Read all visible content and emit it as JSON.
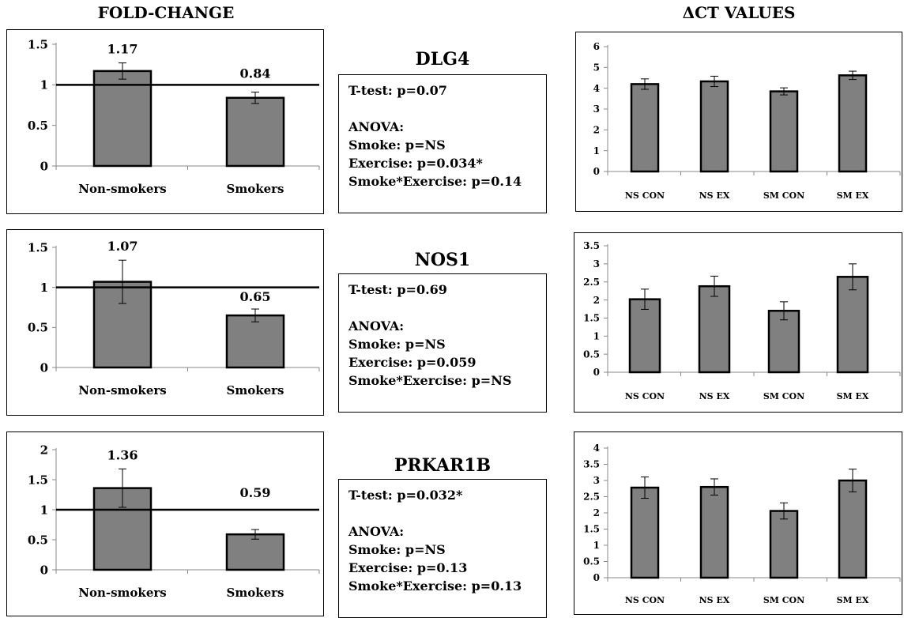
{
  "headers": {
    "left": "FOLD-CHANGE",
    "right": "ΔCT VALUES"
  },
  "rows": [
    {
      "gene": "DLG4",
      "stats": {
        "ttest": "T-test: p=0.07",
        "anova": "ANOVA:",
        "smoke": "Smoke: p=NS",
        "exercise": "Exercise: p=0.034*",
        "interaction": "Smoke*Exercise: p=0.14"
      }
    },
    {
      "gene": "NOS1",
      "stats": {
        "ttest": "T-test: p=0.69",
        "anova": "ANOVA:",
        "smoke": "Smoke: p=NS",
        "exercise": "Exercise: p=0.059",
        "interaction": "Smoke*Exercise: p=NS"
      }
    },
    {
      "gene": "PRKAR1B",
      "stats": {
        "ttest": "T-test: p=0.032*",
        "anova": "ANOVA:",
        "smoke": "Smoke: p=NS",
        "exercise": "Exercise: p=0.13",
        "interaction": "Smoke*Exercise: p=0.13"
      }
    }
  ],
  "colors": {
    "bar": "#808080",
    "border": "#000000"
  },
  "chart_data": [
    {
      "id": "fc-dlg4",
      "type": "bar",
      "categories": [
        "Non-smokers",
        "Smokers"
      ],
      "values": [
        1.17,
        0.84
      ],
      "errors": [
        0.1,
        0.07
      ],
      "data_labels": [
        "1.17",
        "0.84"
      ],
      "ylim": [
        0,
        1.5
      ],
      "yticks": [
        0,
        0.5,
        1,
        1.5
      ],
      "ytick_labels": [
        "0",
        "0.5",
        "1",
        "1.5"
      ],
      "reference_line": 1
    },
    {
      "id": "ct-dlg4",
      "type": "bar",
      "categories": [
        "NS CON",
        "NS EX",
        "SM CON",
        "SM EX"
      ],
      "values": [
        4.2,
        4.33,
        3.85,
        4.62
      ],
      "errors": [
        0.25,
        0.25,
        0.17,
        0.2
      ],
      "ylim": [
        0,
        6
      ],
      "yticks": [
        0,
        1,
        2,
        3,
        4,
        5,
        6
      ],
      "ytick_labels": [
        "0",
        "1",
        "2",
        "3",
        "4",
        "5",
        "6"
      ]
    },
    {
      "id": "fc-nos1",
      "type": "bar",
      "categories": [
        "Non-smokers",
        "Smokers"
      ],
      "values": [
        1.07,
        0.65
      ],
      "errors": [
        0.27,
        0.08
      ],
      "data_labels": [
        "1.07",
        "0.65"
      ],
      "ylim": [
        0,
        1.5
      ],
      "yticks": [
        0,
        0.5,
        1,
        1.5
      ],
      "ytick_labels": [
        "0",
        "0.5",
        "1",
        "1.5"
      ],
      "reference_line": 1
    },
    {
      "id": "ct-nos1",
      "type": "bar",
      "categories": [
        "NS CON",
        "NS EX",
        "SM CON",
        "SM EX"
      ],
      "values": [
        2.02,
        2.38,
        1.7,
        2.64
      ],
      "errors": [
        0.28,
        0.28,
        0.25,
        0.36
      ],
      "ylim": [
        0,
        3.5
      ],
      "yticks": [
        0,
        0.5,
        1,
        1.5,
        2,
        2.5,
        3,
        3.5
      ],
      "ytick_labels": [
        "0",
        "0.5",
        "1",
        "1.5",
        "2",
        "2.5",
        "3",
        "3.5"
      ]
    },
    {
      "id": "fc-prkar1b",
      "type": "bar",
      "categories": [
        "Non-smokers",
        "Smokers"
      ],
      "values": [
        1.36,
        0.59
      ],
      "errors": [
        0.32,
        0.08
      ],
      "data_labels": [
        "1.36",
        "0.59"
      ],
      "ylim": [
        0,
        2
      ],
      "yticks": [
        0,
        0.5,
        1,
        1.5,
        2
      ],
      "ytick_labels": [
        "0",
        "0.5",
        "1",
        "1.5",
        "2"
      ],
      "reference_line": 1
    },
    {
      "id": "ct-prkar1b",
      "type": "bar",
      "categories": [
        "NS CON",
        "NS EX",
        "SM CON",
        "SM EX"
      ],
      "values": [
        2.78,
        2.8,
        2.06,
        3.0
      ],
      "errors": [
        0.33,
        0.25,
        0.25,
        0.35
      ],
      "ylim": [
        0,
        4
      ],
      "yticks": [
        0,
        0.5,
        1,
        1.5,
        2,
        2.5,
        3,
        3.5,
        4
      ],
      "ytick_labels": [
        "0",
        "0.5",
        "1",
        "1.5",
        "2",
        "2.5",
        "3",
        "3.5",
        "4"
      ]
    }
  ]
}
